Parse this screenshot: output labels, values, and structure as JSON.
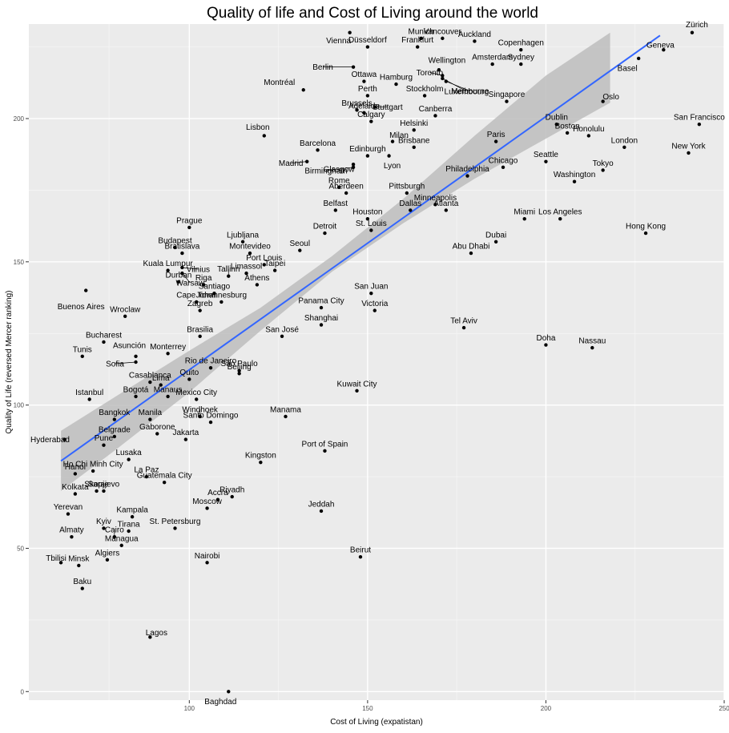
{
  "chart_data": {
    "type": "scatter",
    "title": "Quality of life and Cost of Living around the world",
    "xlabel": "Cost of Living (expatistan)",
    "ylabel": "Quality of Life (reversed Mercer ranking)",
    "xlim": [
      55,
      250
    ],
    "ylim": [
      -3,
      233
    ],
    "x_ticks": [
      100,
      150,
      200,
      250
    ],
    "y_ticks": [
      0,
      50,
      100,
      150,
      200
    ],
    "grid": true,
    "background": "#ebebeb",
    "point_color": "#000000",
    "fit_line_color": "#3366ff",
    "ribbon_color": "#bdbdbd",
    "fit_line": {
      "x": [
        64,
        232
      ],
      "y": [
        80.5,
        229
      ]
    },
    "confidence_band": {
      "x": [
        64,
        80,
        100,
        120,
        140,
        160,
        180,
        200,
        218
      ],
      "lower": [
        70.0,
        85.0,
        104.5,
        126.0,
        146.5,
        163.5,
        179.0,
        193.0,
        205.5
      ],
      "upper": [
        91.0,
        103.5,
        119.0,
        134.0,
        152.0,
        172.0,
        194.0,
        215.0,
        230.0
      ]
    },
    "points": [
      {
        "label": "Zürich",
        "x": 241,
        "y": 230
      },
      {
        "label": "Geneva",
        "x": 233,
        "y": 224
      },
      {
        "label": "Basel",
        "x": 226,
        "y": 221
      },
      {
        "label": "Oslo",
        "x": 216,
        "y": 206
      },
      {
        "label": "San Francisco",
        "x": 243,
        "y": 198
      },
      {
        "label": "London",
        "x": 222,
        "y": 190
      },
      {
        "label": "New York",
        "x": 240,
        "y": 188
      },
      {
        "label": "Honolulu",
        "x": 212,
        "y": 194
      },
      {
        "label": "Boston",
        "x": 206,
        "y": 195
      },
      {
        "label": "Dublin",
        "x": 203,
        "y": 198
      },
      {
        "label": "Seattle",
        "x": 200,
        "y": 185
      },
      {
        "label": "Tokyo",
        "x": 216,
        "y": 182
      },
      {
        "label": "Washington",
        "x": 208,
        "y": 178
      },
      {
        "label": "Hong Kong",
        "x": 228,
        "y": 160
      },
      {
        "label": "Los Angeles",
        "x": 204,
        "y": 165
      },
      {
        "label": "Miami",
        "x": 194,
        "y": 165
      },
      {
        "label": "Dubai",
        "x": 186,
        "y": 157
      },
      {
        "label": "Abu Dhabi",
        "x": 179,
        "y": 153
      },
      {
        "label": "Nassau",
        "x": 213,
        "y": 120
      },
      {
        "label": "Doha",
        "x": 200,
        "y": 121
      },
      {
        "label": "Tel Aviv",
        "x": 177,
        "y": 127
      },
      {
        "label": "Copenhagen",
        "x": 193,
        "y": 224
      },
      {
        "label": "Sydney",
        "x": 193,
        "y": 219
      },
      {
        "label": "Auckland",
        "x": 180,
        "y": 227
      },
      {
        "label": "Amsterdam",
        "x": 185,
        "y": 219
      },
      {
        "label": "Singapore",
        "x": 189,
        "y": 206
      },
      {
        "label": "Paris",
        "x": 186,
        "y": 192
      },
      {
        "label": "Chicago",
        "x": 188,
        "y": 183
      },
      {
        "label": "Vancouver",
        "x": 171,
        "y": 228
      },
      {
        "label": "Munich",
        "x": 165,
        "y": 228
      },
      {
        "label": "Frankfurt",
        "x": 164,
        "y": 225
      },
      {
        "label": "Wellington",
        "x": 170,
        "y": 217
      },
      {
        "label": "Toronto",
        "x": 171,
        "y": 215
      },
      {
        "label": "Melbourne",
        "x": 172,
        "y": 213
      },
      {
        "label": "Luxembourg",
        "x": 171,
        "y": 214
      },
      {
        "label": "Stockholm",
        "x": 166,
        "y": 208
      },
      {
        "label": "Canberra",
        "x": 169,
        "y": 201
      },
      {
        "label": "Helsinki",
        "x": 163,
        "y": 196
      },
      {
        "label": "Brisbane",
        "x": 163,
        "y": 190
      },
      {
        "label": "Philadelphia",
        "x": 178,
        "y": 180
      },
      {
        "label": "Pittsburgh",
        "x": 161,
        "y": 174
      },
      {
        "label": "Minneapolis",
        "x": 169,
        "y": 170
      },
      {
        "label": "Dallas",
        "x": 162,
        "y": 168
      },
      {
        "label": "Atlanta",
        "x": 172,
        "y": 168
      },
      {
        "label": "Houston",
        "x": 150,
        "y": 165
      },
      {
        "label": "St. Louis",
        "x": 151,
        "y": 161
      },
      {
        "label": "Vienna",
        "x": 145,
        "y": 230
      },
      {
        "label": "Düsseldorf",
        "x": 150,
        "y": 225
      },
      {
        "label": "Berlin",
        "x": 146,
        "y": 218
      },
      {
        "label": "Ottawa",
        "x": 149,
        "y": 213
      },
      {
        "label": "Hamburg",
        "x": 158,
        "y": 212
      },
      {
        "label": "Montréal",
        "x": 132,
        "y": 210
      },
      {
        "label": "Perth",
        "x": 150,
        "y": 208
      },
      {
        "label": "Brussels",
        "x": 147,
        "y": 203
      },
      {
        "label": "Stuttgart",
        "x": 152,
        "y": 204
      },
      {
        "label": "Adelaide",
        "x": 149,
        "y": 202
      },
      {
        "label": "Calgary",
        "x": 151,
        "y": 199
      },
      {
        "label": "Lisbon",
        "x": 121,
        "y": 194
      },
      {
        "label": "Barcelona",
        "x": 136,
        "y": 189
      },
      {
        "label": "Milan",
        "x": 157,
        "y": 192
      },
      {
        "label": "Edinburgh",
        "x": 150,
        "y": 187
      },
      {
        "label": "Lyon",
        "x": 156,
        "y": 187
      },
      {
        "label": "Madrid",
        "x": 133,
        "y": 185
      },
      {
        "label": "Glasgow",
        "x": 146,
        "y": 184
      },
      {
        "label": "Birmingham",
        "x": 146,
        "y": 183
      },
      {
        "label": "Rome",
        "x": 142,
        "y": 176
      },
      {
        "label": "Aberdeen",
        "x": 144,
        "y": 174
      },
      {
        "label": "Belfast",
        "x": 141,
        "y": 168
      },
      {
        "label": "Detroit",
        "x": 138,
        "y": 160
      },
      {
        "label": "Seoul",
        "x": 131,
        "y": 154
      },
      {
        "label": "Prague",
        "x": 100,
        "y": 162
      },
      {
        "label": "Budapest",
        "x": 96,
        "y": 155
      },
      {
        "label": "Bratislava",
        "x": 98,
        "y": 153
      },
      {
        "label": "Ljubljana",
        "x": 115,
        "y": 157
      },
      {
        "label": "Montevideo",
        "x": 117,
        "y": 153
      },
      {
        "label": "Port Louis",
        "x": 121,
        "y": 149
      },
      {
        "label": "Limassol",
        "x": 116,
        "y": 146
      },
      {
        "label": "Taipei",
        "x": 124,
        "y": 147
      },
      {
        "label": "Tallinn",
        "x": 111,
        "y": 145
      },
      {
        "label": "Athens",
        "x": 119,
        "y": 142
      },
      {
        "label": "Vilnius",
        "x": 98,
        "y": 148
      },
      {
        "label": "Warsaw",
        "x": 98,
        "y": 146
      },
      {
        "label": "Riga",
        "x": 104,
        "y": 142
      },
      {
        "label": "Kuala Lumpur",
        "x": 94,
        "y": 147
      },
      {
        "label": "Durban",
        "x": 97,
        "y": 143
      },
      {
        "label": "Santiago",
        "x": 107,
        "y": 139
      },
      {
        "label": "Cape Town",
        "x": 102,
        "y": 136
      },
      {
        "label": "Johannesburg",
        "x": 109,
        "y": 136
      },
      {
        "label": "Zagreb",
        "x": 103,
        "y": 133
      },
      {
        "label": "Brasilia",
        "x": 103,
        "y": 124
      },
      {
        "label": "Buenos Aires",
        "x": 71,
        "y": 140
      },
      {
        "label": "Wroclaw",
        "x": 82,
        "y": 131
      },
      {
        "label": "Panama City",
        "x": 137,
        "y": 134
      },
      {
        "label": "Shanghai",
        "x": 137,
        "y": 128
      },
      {
        "label": "San Juan",
        "x": 151,
        "y": 139
      },
      {
        "label": "Victoria",
        "x": 152,
        "y": 133
      },
      {
        "label": "San José",
        "x": 126,
        "y": 124
      },
      {
        "label": "Bucharest",
        "x": 76,
        "y": 122
      },
      {
        "label": "Tunis",
        "x": 70,
        "y": 117
      },
      {
        "label": "Asunción",
        "x": 85,
        "y": 117
      },
      {
        "label": "Sofia",
        "x": 85,
        "y": 115
      },
      {
        "label": "Monterrey",
        "x": 94,
        "y": 118
      },
      {
        "label": "Rio de Janeiro",
        "x": 106,
        "y": 113
      },
      {
        "label": "São Paulo",
        "x": 114,
        "y": 112
      },
      {
        "label": "Quito",
        "x": 100,
        "y": 109
      },
      {
        "label": "Beijing",
        "x": 114,
        "y": 111
      },
      {
        "label": "Casablanca",
        "x": 89,
        "y": 108
      },
      {
        "label": "Lima",
        "x": 92,
        "y": 107
      },
      {
        "label": "Kuwait City",
        "x": 147,
        "y": 105
      },
      {
        "label": "Istanbul",
        "x": 72,
        "y": 102
      },
      {
        "label": "Bogotá",
        "x": 85,
        "y": 103
      },
      {
        "label": "Manaus",
        "x": 94,
        "y": 103
      },
      {
        "label": "Mexico City",
        "x": 102,
        "y": 102
      },
      {
        "label": "Windhoek",
        "x": 103,
        "y": 96
      },
      {
        "label": "Manama",
        "x": 127,
        "y": 96
      },
      {
        "label": "Bangkok",
        "x": 79,
        "y": 95
      },
      {
        "label": "Manila",
        "x": 89,
        "y": 95
      },
      {
        "label": "Santo Domingo",
        "x": 106,
        "y": 94
      },
      {
        "label": "Hyderabad",
        "x": 65,
        "y": 88
      },
      {
        "label": "Belgrade",
        "x": 79,
        "y": 89
      },
      {
        "label": "Gaborone",
        "x": 91,
        "y": 90
      },
      {
        "label": "Jakarta",
        "x": 99,
        "y": 88
      },
      {
        "label": "Pune",
        "x": 76,
        "y": 86
      },
      {
        "label": "Port of Spain",
        "x": 138,
        "y": 84
      },
      {
        "label": "Lusaka",
        "x": 83,
        "y": 81
      },
      {
        "label": "Kingston",
        "x": 120,
        "y": 80
      },
      {
        "label": "Ho Chi Minh City",
        "x": 73,
        "y": 77
      },
      {
        "label": "Hanoi",
        "x": 68,
        "y": 76
      },
      {
        "label": "La Paz",
        "x": 88,
        "y": 75
      },
      {
        "label": "Sarajevo",
        "x": 76,
        "y": 70
      },
      {
        "label": "Guatemala City",
        "x": 93,
        "y": 73
      },
      {
        "label": "Skopje",
        "x": 74,
        "y": 70
      },
      {
        "label": "Kolkata",
        "x": 68,
        "y": 69
      },
      {
        "label": "Accra",
        "x": 108,
        "y": 67
      },
      {
        "label": "Riyadh",
        "x": 112,
        "y": 68
      },
      {
        "label": "Moscow",
        "x": 105,
        "y": 64
      },
      {
        "label": "Jeddah",
        "x": 137,
        "y": 63
      },
      {
        "label": "Yerevan",
        "x": 66,
        "y": 62
      },
      {
        "label": "Kampala",
        "x": 84,
        "y": 61
      },
      {
        "label": "Kyiv",
        "x": 76,
        "y": 57
      },
      {
        "label": "Tirana",
        "x": 83,
        "y": 56
      },
      {
        "label": "St. Petersburg",
        "x": 96,
        "y": 57
      },
      {
        "label": "Cairo",
        "x": 79,
        "y": 54
      },
      {
        "label": "Almaty",
        "x": 67,
        "y": 54
      },
      {
        "label": "Managua",
        "x": 81,
        "y": 51
      },
      {
        "label": "Tbilisi",
        "x": 64,
        "y": 45
      },
      {
        "label": "Algiers",
        "x": 77,
        "y": 46
      },
      {
        "label": "Minsk",
        "x": 69,
        "y": 44
      },
      {
        "label": "Nairobi",
        "x": 105,
        "y": 45
      },
      {
        "label": "Beirut",
        "x": 148,
        "y": 47
      },
      {
        "label": "Baku",
        "x": 70,
        "y": 36
      },
      {
        "label": "Lagos",
        "x": 89,
        "y": 19
      },
      {
        "label": "Baghdad",
        "x": 111,
        "y": 0
      }
    ]
  }
}
